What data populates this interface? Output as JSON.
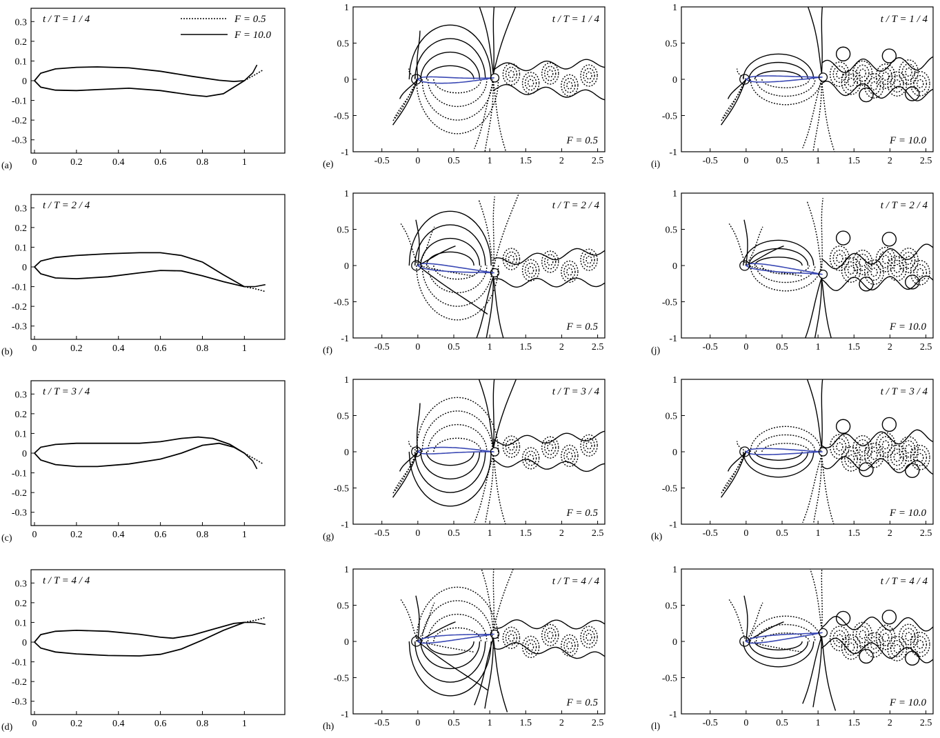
{
  "chart_data": {
    "type": "line",
    "legend": {
      "placement": "top-right of panel (a)",
      "entries": [
        {
          "label": "F = 0.5",
          "style": "dotted"
        },
        {
          "label": "F = 10.0",
          "style": "solid"
        }
      ]
    },
    "profile_panels": [
      {
        "label": "(a)",
        "time_label": "t / T = 1 / 4",
        "xlim": [
          0,
          1.15
        ],
        "ylim": [
          -0.35,
          0.35
        ],
        "xticks": [
          "0",
          "0.2",
          "0.4",
          "0.6",
          "0.8",
          "1"
        ],
        "yticks": [
          "0.3",
          "0.2",
          "0.1",
          "0",
          "-0.1",
          "-0.2",
          "-0.3"
        ],
        "upper": [
          [
            0,
            0
          ],
          [
            0.03,
            0.038
          ],
          [
            0.1,
            0.06
          ],
          [
            0.2,
            0.068
          ],
          [
            0.3,
            0.07
          ],
          [
            0.45,
            0.065
          ],
          [
            0.6,
            0.048
          ],
          [
            0.75,
            0.022
          ],
          [
            0.88,
            0.002
          ],
          [
            0.95,
            -0.004
          ],
          [
            1.0,
            0.0
          ]
        ],
        "lower": [
          [
            0,
            0
          ],
          [
            0.03,
            -0.033
          ],
          [
            0.1,
            -0.048
          ],
          [
            0.2,
            -0.05
          ],
          [
            0.3,
            -0.045
          ],
          [
            0.45,
            -0.038
          ],
          [
            0.6,
            -0.05
          ],
          [
            0.75,
            -0.073
          ],
          [
            0.82,
            -0.08
          ],
          [
            0.9,
            -0.066
          ],
          [
            1.0,
            0.0
          ]
        ],
        "tail_solid": [
          [
            1.0,
            0.0
          ],
          [
            1.04,
            0.04
          ],
          [
            1.06,
            0.08
          ]
        ],
        "tail_dotted": [
          [
            1.0,
            0.0
          ],
          [
            1.05,
            0.03
          ],
          [
            1.09,
            0.055
          ]
        ]
      },
      {
        "label": "(b)",
        "time_label": "t / T = 2 / 4",
        "xlim": [
          0,
          1.15
        ],
        "ylim": [
          -0.35,
          0.35
        ],
        "xticks": [
          "0",
          "0.2",
          "0.4",
          "0.6",
          "0.8",
          "1"
        ],
        "yticks": [
          "0.3",
          "0.2",
          "0.1",
          "0",
          "-0.1",
          "-0.2",
          "-0.3"
        ],
        "upper": [
          [
            0,
            0
          ],
          [
            0.03,
            0.03
          ],
          [
            0.1,
            0.048
          ],
          [
            0.2,
            0.058
          ],
          [
            0.35,
            0.067
          ],
          [
            0.5,
            0.072
          ],
          [
            0.6,
            0.072
          ],
          [
            0.7,
            0.058
          ],
          [
            0.8,
            0.025
          ],
          [
            0.9,
            -0.04
          ],
          [
            1.0,
            -0.1
          ]
        ],
        "lower": [
          [
            0,
            0
          ],
          [
            0.03,
            -0.035
          ],
          [
            0.1,
            -0.056
          ],
          [
            0.2,
            -0.06
          ],
          [
            0.35,
            -0.05
          ],
          [
            0.5,
            -0.03
          ],
          [
            0.6,
            -0.018
          ],
          [
            0.7,
            -0.02
          ],
          [
            0.8,
            -0.045
          ],
          [
            0.9,
            -0.075
          ],
          [
            1.0,
            -0.1
          ]
        ],
        "tail_solid": [
          [
            1.0,
            -0.1
          ],
          [
            1.05,
            -0.1
          ],
          [
            1.1,
            -0.09
          ]
        ],
        "tail_dotted": [
          [
            1.0,
            -0.1
          ],
          [
            1.06,
            -0.113
          ],
          [
            1.1,
            -0.125
          ]
        ]
      },
      {
        "label": "(c)",
        "time_label": "t / T = 3 / 4",
        "xlim": [
          0,
          1.15
        ],
        "ylim": [
          -0.35,
          0.35
        ],
        "xticks": [
          "0",
          "0.2",
          "0.4",
          "0.6",
          "0.8",
          "1"
        ],
        "yticks": [
          "0.3",
          "0.2",
          "0.1",
          "0",
          "-0.1",
          "-0.2",
          "-0.3"
        ],
        "upper": [
          [
            0,
            0
          ],
          [
            0.03,
            0.03
          ],
          [
            0.1,
            0.044
          ],
          [
            0.2,
            0.05
          ],
          [
            0.35,
            0.05
          ],
          [
            0.5,
            0.05
          ],
          [
            0.6,
            0.058
          ],
          [
            0.7,
            0.075
          ],
          [
            0.78,
            0.082
          ],
          [
            0.85,
            0.075
          ],
          [
            0.93,
            0.045
          ],
          [
            1.0,
            0.0
          ]
        ],
        "lower": [
          [
            0,
            0
          ],
          [
            0.03,
            -0.035
          ],
          [
            0.1,
            -0.058
          ],
          [
            0.2,
            -0.068
          ],
          [
            0.3,
            -0.068
          ],
          [
            0.45,
            -0.055
          ],
          [
            0.6,
            -0.03
          ],
          [
            0.7,
            0.0
          ],
          [
            0.8,
            0.04
          ],
          [
            0.88,
            0.05
          ],
          [
            0.95,
            0.03
          ],
          [
            1.0,
            0.0
          ]
        ],
        "tail_solid": [
          [
            1.0,
            0.0
          ],
          [
            1.04,
            -0.04
          ],
          [
            1.06,
            -0.08
          ]
        ],
        "tail_dotted": [
          [
            1.0,
            0.0
          ],
          [
            1.05,
            -0.03
          ],
          [
            1.09,
            -0.055
          ]
        ]
      },
      {
        "label": "(d)",
        "time_label": "t / T = 4 / 4",
        "xlim": [
          0,
          1.15
        ],
        "ylim": [
          -0.35,
          0.35
        ],
        "xticks": [
          "0",
          "0.2",
          "0.4",
          "0.6",
          "0.8",
          "1"
        ],
        "yticks": [
          "0.3",
          "0.2",
          "0.1",
          "0",
          "-0.1",
          "-0.2",
          "-0.3"
        ],
        "upper": [
          [
            0,
            0
          ],
          [
            0.03,
            0.038
          ],
          [
            0.1,
            0.055
          ],
          [
            0.2,
            0.06
          ],
          [
            0.35,
            0.055
          ],
          [
            0.5,
            0.04
          ],
          [
            0.6,
            0.025
          ],
          [
            0.66,
            0.02
          ],
          [
            0.75,
            0.035
          ],
          [
            0.85,
            0.065
          ],
          [
            0.95,
            0.095
          ],
          [
            1.0,
            0.1
          ]
        ],
        "lower": [
          [
            0,
            0
          ],
          [
            0.03,
            -0.03
          ],
          [
            0.1,
            -0.05
          ],
          [
            0.2,
            -0.06
          ],
          [
            0.35,
            -0.068
          ],
          [
            0.5,
            -0.07
          ],
          [
            0.6,
            -0.062
          ],
          [
            0.7,
            -0.035
          ],
          [
            0.8,
            0.01
          ],
          [
            0.9,
            0.06
          ],
          [
            1.0,
            0.1
          ]
        ],
        "tail_solid": [
          [
            1.0,
            0.1
          ],
          [
            1.05,
            0.1
          ],
          [
            1.1,
            0.09
          ]
        ],
        "tail_dotted": [
          [
            1.0,
            0.1
          ],
          [
            1.06,
            0.113
          ],
          [
            1.1,
            0.125
          ]
        ]
      }
    ],
    "field_panels": [
      {
        "label": "(e)",
        "time_label": "t / T = 1 / 4",
        "f_label": "F = 0.5",
        "phase": 1,
        "freq": "low"
      },
      {
        "label": "(f)",
        "time_label": "t / T = 2 / 4",
        "f_label": "F = 0.5",
        "phase": 2,
        "freq": "low"
      },
      {
        "label": "(g)",
        "time_label": "t / T = 3 / 4",
        "f_label": "F = 0.5",
        "phase": 3,
        "freq": "low"
      },
      {
        "label": "(h)",
        "time_label": "t / T = 4 / 4",
        "f_label": "F = 0.5",
        "phase": 4,
        "freq": "low"
      },
      {
        "label": "(i)",
        "time_label": "t / T = 1 / 4",
        "f_label": "F = 10.0",
        "phase": 1,
        "freq": "high"
      },
      {
        "label": "(j)",
        "time_label": "t / T = 2 / 4",
        "f_label": "F = 10.0",
        "phase": 2,
        "freq": "high"
      },
      {
        "label": "(k)",
        "time_label": "t / T = 3 / 4",
        "f_label": "F = 10.0",
        "phase": 3,
        "freq": "high"
      },
      {
        "label": "(l)",
        "time_label": "t / T = 4 / 4",
        "f_label": "F = 10.0",
        "phase": 4,
        "freq": "high"
      }
    ],
    "field_axes": {
      "xlim": [
        -0.9,
        2.6
      ],
      "ylim": [
        -1,
        1
      ],
      "xticks": [
        [
          "-0.5",
          -0.5
        ],
        [
          "0",
          0
        ],
        [
          "0.5",
          0.5
        ],
        [
          "1",
          1
        ],
        [
          "1.5",
          1.5
        ],
        [
          "2",
          2
        ],
        [
          "2.5",
          2.5
        ]
      ],
      "yticks": [
        [
          "1",
          1
        ],
        [
          "0.5",
          0.5
        ],
        [
          "0",
          0
        ],
        [
          "-0.5",
          -0.5
        ],
        [
          "-1",
          -1
        ]
      ]
    },
    "colors": {
      "line": "#000000",
      "body_outline": "#3a48b4"
    }
  }
}
